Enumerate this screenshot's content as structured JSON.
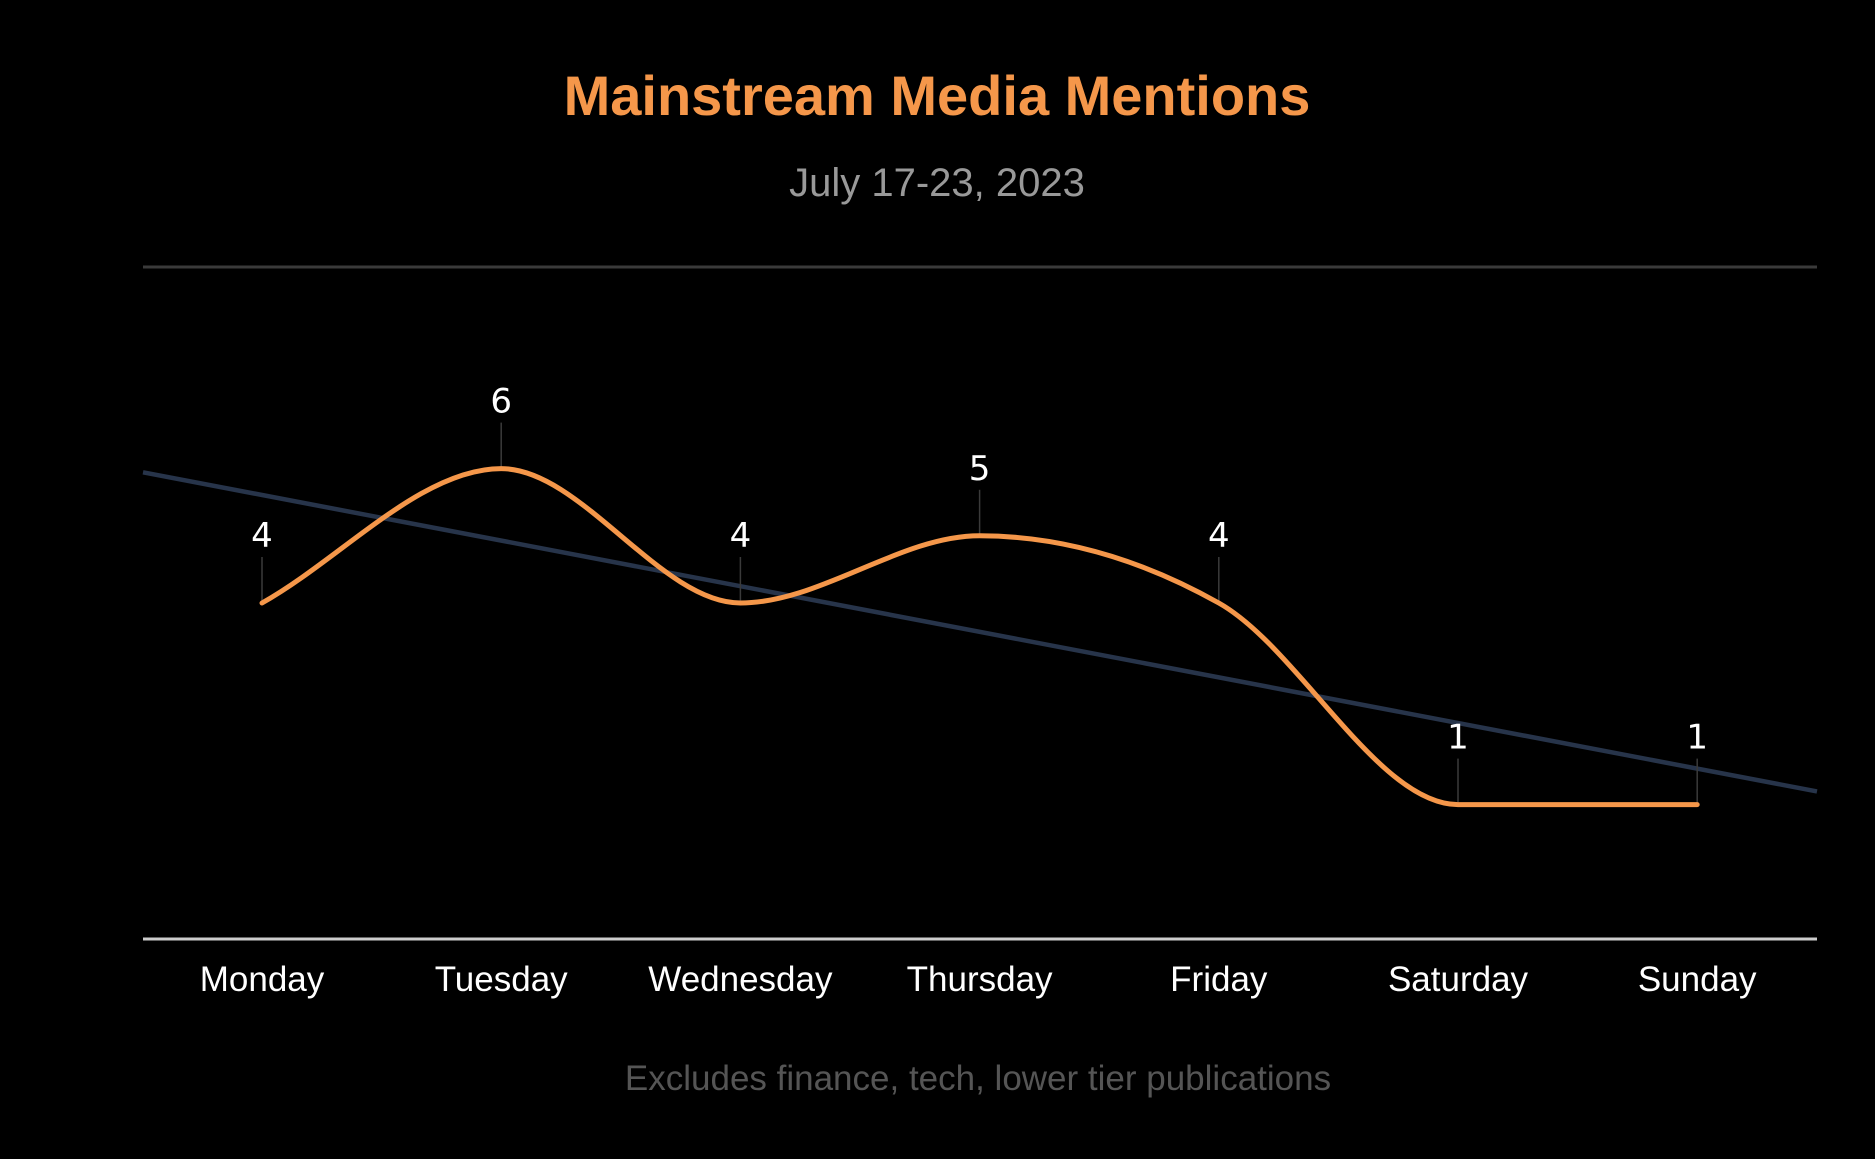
{
  "chart_data": {
    "type": "line",
    "title": "Mainstream Media Mentions",
    "subtitle": "July 17-23, 2023",
    "footnote": "Excludes finance, tech, lower tier publications",
    "categories": [
      "Monday",
      "Tuesday",
      "Wednesday",
      "Thursday",
      "Friday",
      "Saturday",
      "Sunday"
    ],
    "series": [
      {
        "values": [
          4,
          6,
          4,
          5,
          4,
          1,
          1
        ],
        "color": "#F5974A",
        "smooth": true,
        "data_labels": true
      }
    ],
    "trendline": {
      "type": "linear",
      "color": "#27344A"
    },
    "ylim": [
      -1,
      9
    ],
    "grid": false,
    "legend": "none",
    "colors": {
      "background": "#000000",
      "title": "#F5974A",
      "subtitle": "#999999",
      "tick_labels": "#FFFFFF",
      "data_labels": "#FFFFFF",
      "footnote": "#555555",
      "top_rule": "#3A3A3A",
      "baseline": "#CCCCCC"
    }
  }
}
